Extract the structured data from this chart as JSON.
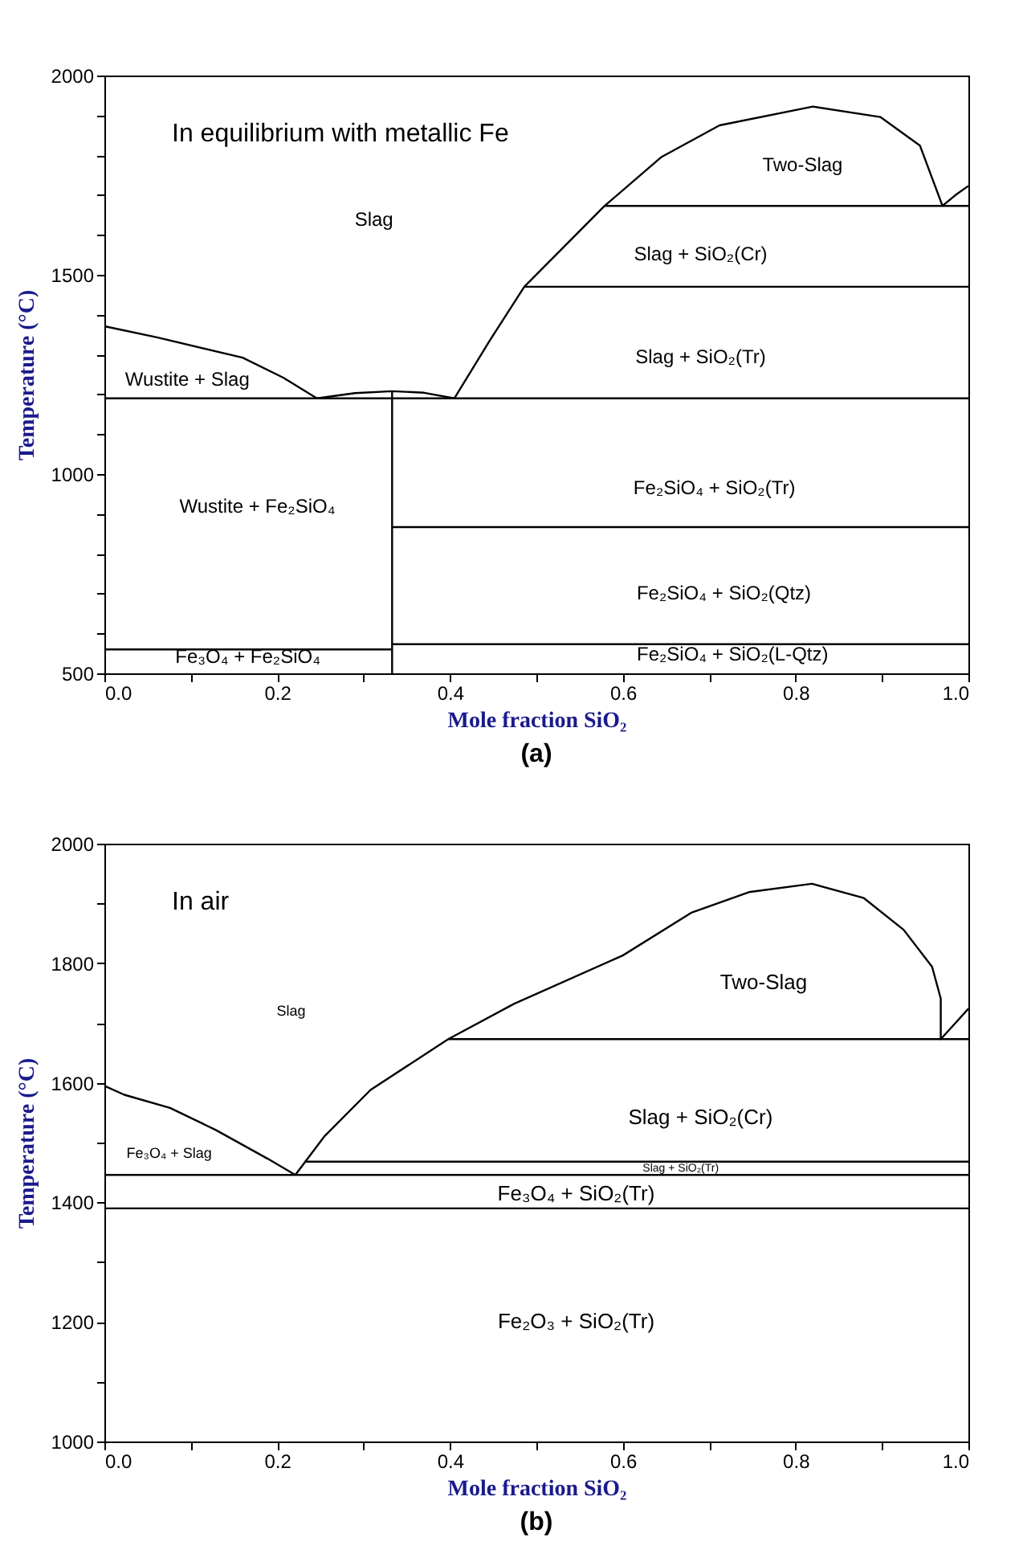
{
  "chart_data": [
    {
      "type": "line",
      "title": "(a)",
      "subtitle": "In equilibrium with metallic Fe",
      "xlabel": "Mole fraction SiO₂",
      "ylabel": "Temperature (°C)",
      "xlim": [
        0,
        1
      ],
      "ylim": [
        500,
        2000
      ],
      "xticks": [
        {
          "value": 0,
          "label": "0.0"
        },
        {
          "value": 0.1,
          "label": null
        },
        0.2,
        {
          "value": 0.3,
          "label": null
        },
        0.4,
        {
          "value": 0.5,
          "label": null
        },
        0.6,
        {
          "value": 0.7,
          "label": null
        },
        0.8,
        {
          "value": 0.9,
          "label": null
        },
        {
          "value": 1,
          "label": "1.0"
        }
      ],
      "yticks": [
        500,
        {
          "value": 600,
          "label": null
        },
        {
          "value": 700,
          "label": null
        },
        {
          "value": 800,
          "label": null
        },
        {
          "value": 900,
          "label": null
        },
        1000,
        {
          "value": 1100,
          "label": null
        },
        {
          "value": 1200,
          "label": null
        },
        {
          "value": 1300,
          "label": null
        },
        {
          "value": 1400,
          "label": null
        },
        1500,
        {
          "value": 1600,
          "label": null
        },
        {
          "value": 1700,
          "label": null
        },
        {
          "value": 1800,
          "label": null
        },
        {
          "value": 1900,
          "label": null
        },
        2000
      ],
      "series": [
        {
          "color": "#000000",
          "x": [
            0,
            0.061,
            0.16,
            0.207,
            0.246
          ],
          "values": [
            1371,
            1343,
            1292,
            1242,
            1190
          ]
        },
        {
          "color": "#000000",
          "x": [
            0.246,
            0.29,
            0.333,
            0.37,
            0.405
          ],
          "values": [
            1190,
            1203,
            1208,
            1204,
            1190
          ]
        },
        {
          "color": "#000000",
          "x": [
            0.405,
            0.446,
            0.486,
            0.579,
            0.645,
            0.712,
            0.82,
            0.898,
            0.944,
            0.97,
            0.985,
            1
          ],
          "values": [
            1190,
            1335,
            1470,
            1673,
            1796,
            1875,
            1922,
            1896,
            1824,
            1673,
            1700,
            1723
          ]
        },
        {
          "color": "#000000",
          "x": [
            0,
            1
          ],
          "values": [
            1190,
            1190
          ]
        },
        {
          "color": "#000000",
          "x": [
            0.486,
            1
          ],
          "values": [
            1470,
            1470
          ]
        },
        {
          "color": "#000000",
          "x": [
            0.579,
            1
          ],
          "values": [
            1673,
            1673
          ]
        },
        {
          "color": "#000000",
          "x": [
            0.333,
            0.333
          ],
          "values": [
            500,
            1208
          ]
        },
        {
          "color": "#000000",
          "x": [
            0.333,
            1
          ],
          "values": [
            867,
            867
          ]
        },
        {
          "color": "#000000",
          "x": [
            0,
            0.333
          ],
          "values": [
            560,
            560
          ]
        },
        {
          "color": "#000000",
          "x": [
            0.333,
            1
          ],
          "values": [
            573,
            573
          ]
        }
      ],
      "annotations": [
        "Slag",
        "Two-Slag",
        "Slag + SiO₂(Cr)",
        "Slag + SiO₂(Tr)",
        "Wustite + Slag",
        "Wustite + Fe₂SiO₄",
        "Fe₂SiO₄ + SiO₂(Tr)",
        "Fe₂SiO₄ + SiO₂(Qtz)",
        "Fe₂SiO₄ + SiO₂(L-Qtz)",
        "Fe₃O₄ + Fe₂SiO₄"
      ]
    },
    {
      "type": "line",
      "title": "(b)",
      "subtitle": "In air",
      "xlabel": "Mole fraction SiO₂",
      "ylabel": "Temperature (°C)",
      "xlim": [
        0,
        1
      ],
      "ylim": [
        1000,
        2000
      ],
      "xticks": [
        {
          "value": 0,
          "label": "0.0"
        },
        {
          "value": 0.1,
          "label": null
        },
        0.2,
        {
          "value": 0.3,
          "label": null
        },
        0.4,
        {
          "value": 0.5,
          "label": null
        },
        0.6,
        {
          "value": 0.7,
          "label": null
        },
        0.8,
        {
          "value": 0.9,
          "label": null
        },
        {
          "value": 1,
          "label": "1.0"
        }
      ],
      "yticks": [
        1000,
        {
          "value": 1100,
          "label": null
        },
        1200,
        {
          "value": 1300,
          "label": null
        },
        1400,
        {
          "value": 1500,
          "label": null
        },
        1600,
        {
          "value": 1700,
          "label": null
        },
        1800,
        {
          "value": 1900,
          "label": null
        },
        2000
      ],
      "series": [
        {
          "color": "#000000",
          "x": [
            0,
            0.023,
            0.076,
            0.129,
            0.189,
            0.221
          ],
          "values": [
            1595,
            1580,
            1558,
            1521,
            1473,
            1446
          ]
        },
        {
          "color": "#000000",
          "x": [
            0.221,
            0.255,
            0.308,
            0.398,
            0.474,
            0.6,
            0.68,
            0.746,
            0.819,
            0.879,
            0.925,
            0.958,
            0.968,
            0.968,
            0.985,
            1
          ],
          "values": [
            1446,
            1511,
            1588,
            1673,
            1732,
            1813,
            1885,
            1919,
            1933,
            1909,
            1856,
            1794,
            1741,
            1673,
            1700,
            1724
          ]
        },
        {
          "color": "#000000",
          "x": [
            0.398,
            1
          ],
          "values": [
            1673,
            1673
          ]
        },
        {
          "color": "#000000",
          "x": [
            0.232,
            1
          ],
          "values": [
            1468,
            1468
          ]
        },
        {
          "color": "#000000",
          "x": [
            0,
            1
          ],
          "values": [
            1446,
            1446
          ]
        },
        {
          "color": "#000000",
          "x": [
            0,
            1
          ],
          "values": [
            1390,
            1390
          ]
        }
      ],
      "annotations": [
        "Slag",
        "Two-Slag",
        "Slag + SiO₂(Cr)",
        "Fe₃O₄ + Slag",
        "Slag + SiO₂(Tr)",
        "Fe₃O₄ + SiO₂(Tr)",
        "Fe₂O₃ + SiO₂(Tr)"
      ]
    }
  ]
}
